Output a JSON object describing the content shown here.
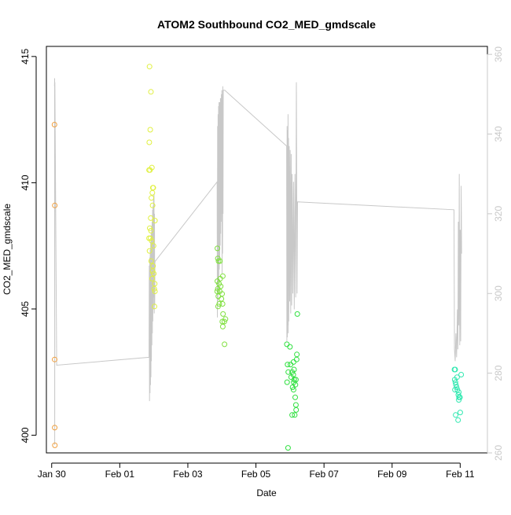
{
  "chart_data": {
    "type": "scatter",
    "title": "ATOM2 Southbound CO2_MED_gmdscale",
    "xlabel": "Date",
    "ylabel": "CO2_MED_gmdscale",
    "x_ticks": [
      "Jan 30",
      "Feb 01",
      "Feb 03",
      "Feb 05",
      "Feb 07",
      "Feb 09",
      "Feb 11"
    ],
    "xlim": [
      "2023-01-29T20:16",
      "2023-02-11T19:12"
    ],
    "ylim": [
      399.3,
      415.4
    ],
    "y_ticks": [
      400,
      405,
      410,
      415
    ],
    "y2lim": [
      260,
      362
    ],
    "y2_ticks": [
      260,
      280,
      300,
      320,
      340,
      360
    ],
    "grid": false,
    "legend": "none",
    "colors": {
      "line": "#c8c8c8",
      "axis": "#000000",
      "right_axis_text": "#c8c8c8",
      "orange": "#f0a040",
      "yellow": "#e0f040",
      "green": "#80e040",
      "green2": "#30e040",
      "cyan": "#30e8b0"
    },
    "series": [
      {
        "color": "orange",
        "points": [
          [
            "2023-01-30T02:00",
            412.3
          ],
          [
            "2023-01-30T02:12",
            409.1
          ],
          [
            "2023-01-30T02:05",
            403.0
          ],
          [
            "2023-01-30T02:10",
            400.3
          ],
          [
            "2023-01-30T02:15",
            399.6
          ]
        ]
      },
      {
        "color": "yellow",
        "points": [
          [
            "2023-02-01T21:00",
            414.6
          ],
          [
            "2023-02-01T22:00",
            413.6
          ],
          [
            "2023-02-01T21:30",
            412.1
          ],
          [
            "2023-02-01T20:50",
            411.6
          ],
          [
            "2023-02-01T20:40",
            410.5
          ],
          [
            "2023-02-01T21:20",
            410.5
          ],
          [
            "2023-02-01T22:40",
            410.6
          ],
          [
            "2023-02-01T23:20",
            409.8
          ],
          [
            "2023-02-01T23:40",
            409.8
          ],
          [
            "2023-02-01T23:00",
            409.6
          ],
          [
            "2023-02-01T22:20",
            409.4
          ],
          [
            "2023-02-01T23:10",
            409.1
          ],
          [
            "2023-02-01T21:50",
            408.6
          ],
          [
            "2023-02-02T00:50",
            408.5
          ],
          [
            "2023-02-01T21:10",
            408.2
          ],
          [
            "2023-02-01T22:00",
            408.1
          ],
          [
            "2023-02-01T20:40",
            407.8
          ],
          [
            "2023-02-01T21:40",
            407.8
          ],
          [
            "2023-02-01T22:30",
            407.7
          ],
          [
            "2023-02-01T23:50",
            407.5
          ],
          [
            "2023-02-01T21:00",
            407.3
          ],
          [
            "2023-02-01T22:10",
            406.9
          ],
          [
            "2023-02-01T23:30",
            406.7
          ],
          [
            "2023-02-02T00:00",
            406.4
          ],
          [
            "2023-02-01T23:10",
            406.5
          ],
          [
            "2023-02-02T00:40",
            406.0
          ],
          [
            "2023-02-02T00:20",
            405.8
          ],
          [
            "2023-02-02T00:50",
            405.7
          ],
          [
            "2023-02-02T00:30",
            405.1
          ],
          [
            "2023-02-01T22:50",
            406.2
          ]
        ]
      },
      {
        "color": "green",
        "points": [
          [
            "2023-02-03T20:50",
            407.4
          ],
          [
            "2023-02-03T21:10",
            407.0
          ],
          [
            "2023-02-03T22:40",
            406.9
          ],
          [
            "2023-02-03T21:40",
            406.9
          ],
          [
            "2023-02-04T00:40",
            406.3
          ],
          [
            "2023-02-03T22:50",
            406.2
          ],
          [
            "2023-02-03T20:50",
            406.1
          ],
          [
            "2023-02-03T22:00",
            406.0
          ],
          [
            "2023-02-03T23:10",
            405.9
          ],
          [
            "2023-02-03T21:10",
            405.8
          ],
          [
            "2023-02-03T20:40",
            405.7
          ],
          [
            "2023-02-03T22:30",
            405.7
          ],
          [
            "2023-02-04T00:10",
            405.6
          ],
          [
            "2023-02-03T21:30",
            405.5
          ],
          [
            "2023-02-03T23:40",
            405.4
          ],
          [
            "2023-02-03T22:10",
            405.2
          ],
          [
            "2023-02-04T00:30",
            405.2
          ],
          [
            "2023-02-03T21:20",
            405.1
          ],
          [
            "2023-02-04T00:50",
            404.8
          ],
          [
            "2023-02-04T02:30",
            404.6
          ],
          [
            "2023-02-04T00:20",
            404.5
          ],
          [
            "2023-02-04T01:40",
            404.5
          ],
          [
            "2023-02-04T00:40",
            404.3
          ],
          [
            "2023-02-04T01:50",
            403.6
          ]
        ]
      },
      {
        "color": "green2",
        "points": [
          [
            "2023-02-05T21:50",
            403.6
          ],
          [
            "2023-02-06T00:00",
            403.5
          ],
          [
            "2023-02-06T04:50",
            403.2
          ],
          [
            "2023-02-06T04:40",
            403.0
          ],
          [
            "2023-02-06T05:10",
            404.8
          ],
          [
            "2023-02-06T02:30",
            402.9
          ],
          [
            "2023-02-05T22:20",
            402.8
          ],
          [
            "2023-02-06T00:20",
            402.8
          ],
          [
            "2023-02-06T02:50",
            402.6
          ],
          [
            "2023-02-05T22:50",
            402.5
          ],
          [
            "2023-02-06T01:30",
            402.5
          ],
          [
            "2023-02-06T02:20",
            402.4
          ],
          [
            "2023-02-06T00:50",
            402.3
          ],
          [
            "2023-02-06T03:00",
            402.2
          ],
          [
            "2023-02-06T04:10",
            402.2
          ],
          [
            "2023-02-06T02:40",
            402.1
          ],
          [
            "2023-02-05T22:00",
            402.1
          ],
          [
            "2023-02-06T03:50",
            402.0
          ],
          [
            "2023-02-06T01:50",
            401.9
          ],
          [
            "2023-02-06T02:30",
            401.8
          ],
          [
            "2023-02-06T03:40",
            401.5
          ],
          [
            "2023-02-06T04:10",
            401.2
          ],
          [
            "2023-02-06T04:20",
            401.0
          ],
          [
            "2023-02-06T03:20",
            400.8
          ],
          [
            "2023-02-06T01:30",
            400.8
          ],
          [
            "2023-02-05T22:40",
            399.5
          ]
        ]
      },
      {
        "color": "cyan",
        "points": [
          [
            "2023-02-10T20:00",
            402.6
          ],
          [
            "2023-02-10T20:30",
            402.6
          ],
          [
            "2023-02-11T00:40",
            402.4
          ],
          [
            "2023-02-10T21:50",
            402.3
          ],
          [
            "2023-02-10T20:10",
            402.2
          ],
          [
            "2023-02-10T20:40",
            402.1
          ],
          [
            "2023-02-10T21:00",
            402.0
          ],
          [
            "2023-02-10T21:30",
            401.9
          ],
          [
            "2023-02-10T20:20",
            401.8
          ],
          [
            "2023-02-10T22:00",
            401.8
          ],
          [
            "2023-02-10T23:00",
            401.7
          ],
          [
            "2023-02-10T22:40",
            401.6
          ],
          [
            "2023-02-10T23:10",
            401.5
          ],
          [
            "2023-02-10T23:50",
            401.5
          ],
          [
            "2023-02-10T23:00",
            401.4
          ],
          [
            "2023-02-11T00:00",
            400.9
          ],
          [
            "2023-02-10T20:50",
            400.8
          ],
          [
            "2023-02-10T22:30",
            400.6
          ]
        ]
      }
    ],
    "line_series": {
      "axis": "right",
      "color": "line",
      "points": [
        [
          "2023-01-30T02:00",
          352
        ],
        [
          "2023-01-30T02:05",
          354
        ],
        [
          "2023-01-30T02:10",
          262
        ],
        [
          "2023-01-30T02:15",
          353
        ],
        [
          "2023-01-30T03:30",
          282
        ],
        [
          "2023-02-01T20:40",
          284
        ],
        [
          "2023-02-01T20:50",
          307
        ],
        [
          "2023-02-01T21:00",
          273
        ],
        [
          "2023-02-01T21:10",
          309
        ],
        [
          "2023-02-01T21:20",
          275
        ],
        [
          "2023-02-01T21:30",
          311
        ],
        [
          "2023-02-01T21:40",
          277
        ],
        [
          "2023-02-01T21:50",
          313
        ],
        [
          "2023-02-01T22:00",
          279
        ],
        [
          "2023-02-01T22:10",
          315
        ],
        [
          "2023-02-01T22:20",
          283
        ],
        [
          "2023-02-01T22:30",
          317
        ],
        [
          "2023-02-01T22:40",
          287
        ],
        [
          "2023-02-01T22:50",
          318
        ],
        [
          "2023-02-01T23:00",
          290
        ],
        [
          "2023-02-01T23:10",
          321
        ],
        [
          "2023-02-01T23:20",
          293
        ],
        [
          "2023-02-01T23:30",
          322
        ],
        [
          "2023-02-01T23:40",
          296
        ],
        [
          "2023-02-01T23:50",
          324
        ],
        [
          "2023-02-02T00:00",
          299
        ],
        [
          "2023-02-02T00:10",
          325
        ],
        [
          "2023-02-02T00:20",
          295
        ],
        [
          "2023-02-02T00:30",
          320
        ],
        [
          "2023-02-02T00:40",
          297
        ],
        [
          "2023-02-02T00:50",
          308
        ],
        [
          "2023-02-03T20:40",
          328
        ],
        [
          "2023-02-03T20:50",
          294
        ],
        [
          "2023-02-03T21:00",
          342
        ],
        [
          "2023-02-03T21:10",
          298
        ],
        [
          "2023-02-03T21:20",
          345
        ],
        [
          "2023-02-03T21:30",
          300
        ],
        [
          "2023-02-03T21:40",
          347
        ],
        [
          "2023-02-03T21:50",
          303
        ],
        [
          "2023-02-03T22:00",
          348
        ],
        [
          "2023-02-03T22:10",
          306
        ],
        [
          "2023-02-03T22:20",
          348
        ],
        [
          "2023-02-03T22:30",
          309
        ],
        [
          "2023-02-03T22:40",
          348
        ],
        [
          "2023-02-03T22:50",
          312
        ],
        [
          "2023-02-03T23:00",
          349
        ],
        [
          "2023-02-03T23:10",
          315
        ],
        [
          "2023-02-03T23:20",
          349
        ],
        [
          "2023-02-03T23:30",
          318
        ],
        [
          "2023-02-03T23:40",
          350
        ],
        [
          "2023-02-03T23:50",
          320
        ],
        [
          "2023-02-04T00:00",
          351
        ],
        [
          "2023-02-04T00:10",
          305
        ],
        [
          "2023-02-04T00:20",
          350
        ],
        [
          "2023-02-04T00:30",
          310
        ],
        [
          "2023-02-04T00:40",
          352
        ],
        [
          "2023-02-04T00:50",
          320
        ],
        [
          "2023-02-04T01:00",
          351
        ],
        [
          "2023-02-04T02:00",
          351
        ],
        [
          "2023-02-05T21:40",
          337
        ],
        [
          "2023-02-05T21:50",
          288
        ],
        [
          "2023-02-05T22:00",
          342
        ],
        [
          "2023-02-05T22:10",
          289
        ],
        [
          "2023-02-05T22:20",
          341
        ],
        [
          "2023-02-05T22:30",
          292
        ],
        [
          "2023-02-05T22:40",
          345
        ],
        [
          "2023-02-05T22:50",
          290
        ],
        [
          "2023-02-05T23:00",
          339
        ],
        [
          "2023-02-05T23:10",
          293
        ],
        [
          "2023-02-05T23:30",
          337
        ],
        [
          "2023-02-05T23:50",
          298
        ],
        [
          "2023-02-06T00:10",
          336
        ],
        [
          "2023-02-06T00:30",
          295
        ],
        [
          "2023-02-06T00:50",
          335
        ],
        [
          "2023-02-06T01:10",
          297
        ],
        [
          "2023-02-06T01:30",
          330
        ],
        [
          "2023-02-06T02:00",
          300
        ],
        [
          "2023-02-06T02:30",
          328
        ],
        [
          "2023-02-06T03:00",
          296
        ],
        [
          "2023-02-06T03:30",
          330
        ],
        [
          "2023-02-06T04:00",
          299
        ],
        [
          "2023-02-06T04:30",
          353
        ],
        [
          "2023-02-06T05:00",
          300
        ],
        [
          "2023-02-06T05:20",
          323
        ],
        [
          "2023-02-10T19:40",
          321
        ],
        [
          "2023-02-10T20:00",
          286
        ],
        [
          "2023-02-10T20:30",
          283
        ],
        [
          "2023-02-10T21:00",
          290
        ],
        [
          "2023-02-10T21:30",
          284
        ],
        [
          "2023-02-10T22:00",
          296
        ],
        [
          "2023-02-10T22:20",
          286
        ],
        [
          "2023-02-10T22:40",
          318
        ],
        [
          "2023-02-10T23:00",
          292
        ],
        [
          "2023-02-10T23:20",
          330
        ],
        [
          "2023-02-10T23:40",
          287
        ],
        [
          "2023-02-11T00:00",
          316
        ],
        [
          "2023-02-11T00:20",
          288
        ],
        [
          "2023-02-11T00:40",
          327
        ],
        [
          "2023-02-11T01:00",
          310
        ]
      ]
    }
  }
}
